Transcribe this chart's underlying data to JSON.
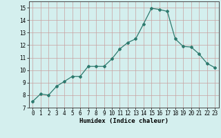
{
  "x": [
    0,
    1,
    2,
    3,
    4,
    5,
    6,
    7,
    8,
    9,
    10,
    11,
    12,
    13,
    14,
    15,
    16,
    17,
    18,
    19,
    20,
    21,
    22,
    23
  ],
  "y": [
    7.5,
    8.1,
    8.0,
    8.7,
    9.1,
    9.5,
    9.5,
    10.3,
    10.3,
    10.3,
    10.9,
    11.7,
    12.2,
    12.5,
    13.7,
    14.95,
    14.85,
    14.7,
    12.5,
    11.9,
    11.85,
    11.3,
    10.55,
    10.2
  ],
  "line_color": "#2d7a6e",
  "marker": "D",
  "marker_size": 2.0,
  "linewidth": 0.9,
  "xlabel": "Humidex (Indice chaleur)",
  "ylim": [
    7,
    15.5
  ],
  "xlim": [
    -0.5,
    23.5
  ],
  "yticks": [
    7,
    8,
    9,
    10,
    11,
    12,
    13,
    14,
    15
  ],
  "xticks": [
    0,
    1,
    2,
    3,
    4,
    5,
    6,
    7,
    8,
    9,
    10,
    11,
    12,
    13,
    14,
    15,
    16,
    17,
    18,
    19,
    20,
    21,
    22,
    23
  ],
  "bg_color": "#d4efee",
  "grid_color": "#c8a0a0"
}
